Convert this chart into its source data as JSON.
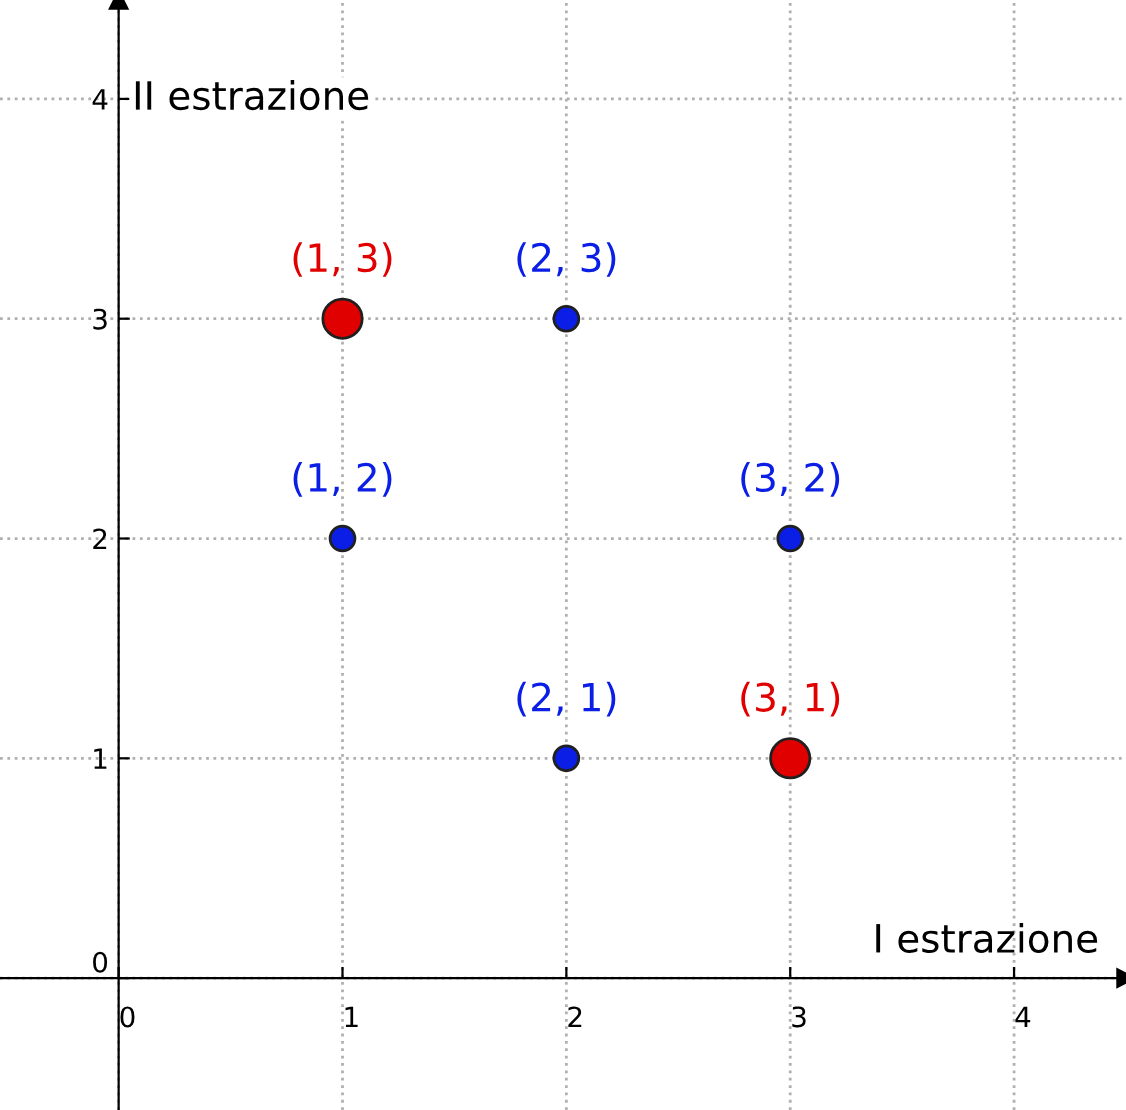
{
  "chart_data": {
    "type": "scatter",
    "xlabel": "I estrazione",
    "ylabel": "II estrazione",
    "series": [
      {
        "color": "#0a1ee6",
        "x": [
          1,
          2,
          2,
          3
        ],
        "values": [
          2,
          3,
          1,
          2
        ]
      },
      {
        "color": "#e00000",
        "x": [
          1,
          3
        ],
        "values": [
          3,
          1
        ]
      }
    ],
    "annotations": [
      {
        "text": "(1, 3)",
        "x": 1,
        "y": 3
      },
      {
        "text": "(2, 3)",
        "x": 2,
        "y": 3
      },
      {
        "text": "(1, 2)",
        "x": 1,
        "y": 2
      },
      {
        "text": "(3, 2)",
        "x": 3,
        "y": 2
      },
      {
        "text": "(2, 1)",
        "x": 2,
        "y": 1
      },
      {
        "text": "(3, 1)",
        "x": 3,
        "y": 1
      }
    ],
    "xlim": [
      -0.53,
      4.5
    ],
    "ylim": [
      -0.6,
      4.45
    ],
    "xticks": [
      0,
      1,
      2,
      3,
      4
    ],
    "yticks": [
      0,
      1,
      2,
      3,
      4
    ],
    "grid": true,
    "marker": "circle",
    "line_style": "dotted"
  }
}
